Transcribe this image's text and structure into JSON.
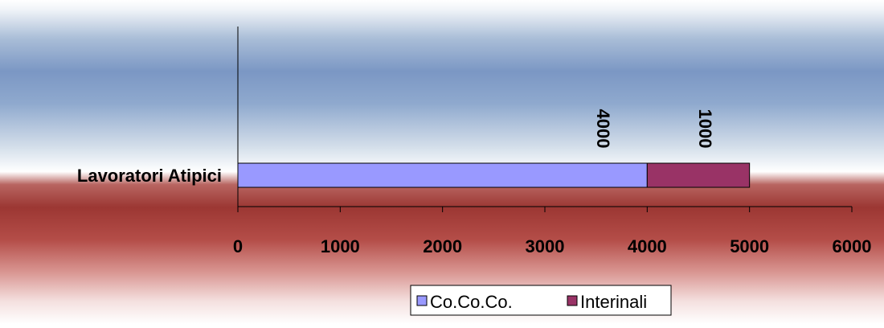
{
  "colors": {
    "series_1": "#9999ff",
    "series_2": "#993366",
    "background_top": "#7b97c4",
    "background_mid": "#ffffff",
    "background_red": "#a63c38"
  },
  "chart_data": {
    "type": "bar",
    "orientation": "horizontal",
    "stacked": true,
    "title": "",
    "xlabel": "",
    "ylabel": "",
    "categories": [
      "Lavoratori Atipici"
    ],
    "series": [
      {
        "name": "Co.Co.Co.",
        "values": [
          4000
        ],
        "data_labels": [
          "4000"
        ]
      },
      {
        "name": "Interinali",
        "values": [
          1000
        ],
        "data_labels": [
          "1000"
        ]
      }
    ],
    "xlim": [
      0,
      6000
    ],
    "x_ticks": [
      "0",
      "1000",
      "2000",
      "3000",
      "4000",
      "5000",
      "6000"
    ],
    "grid": false,
    "legend_position": "bottom"
  }
}
